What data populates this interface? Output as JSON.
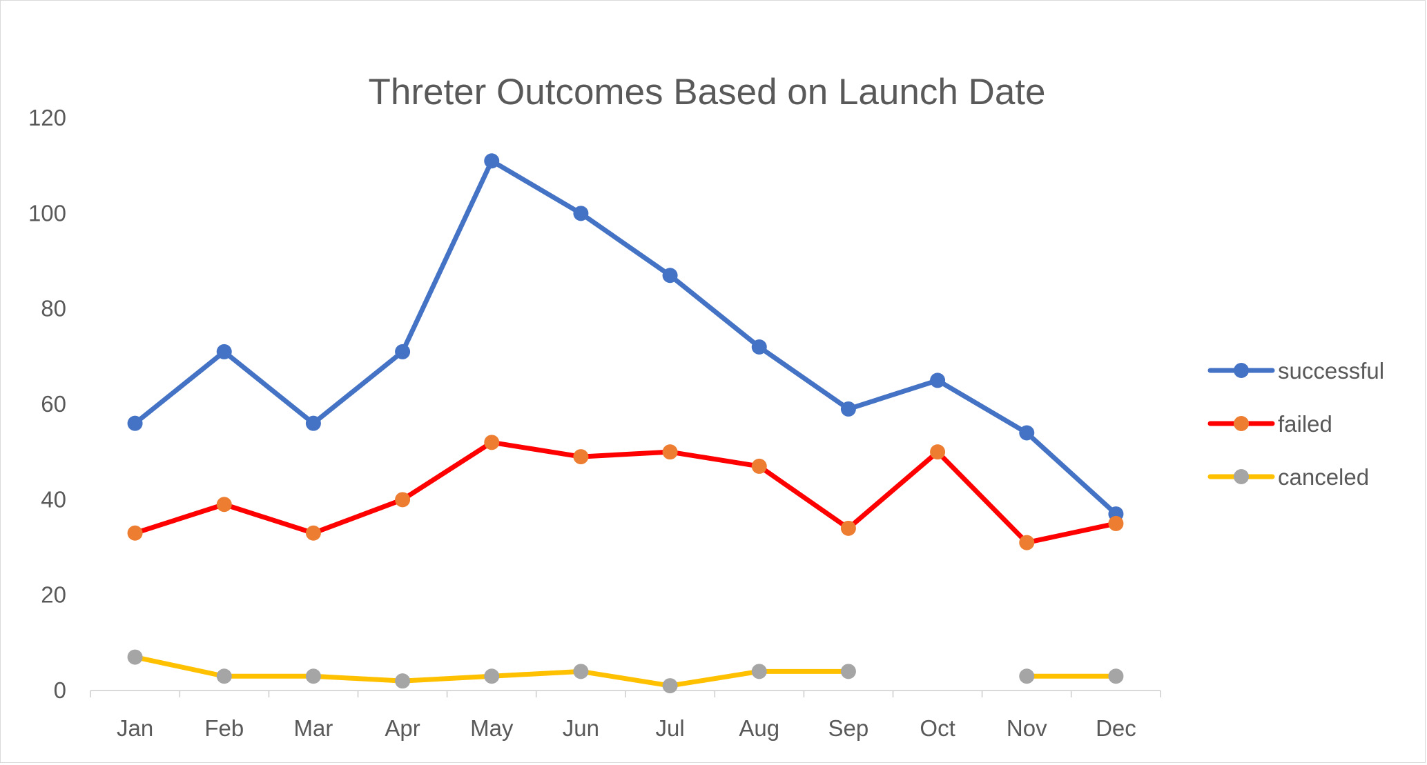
{
  "chart_data": {
    "type": "line",
    "title": "Threter Outcomes Based on Launch Date",
    "xlabel": "",
    "ylabel": "",
    "categories": [
      "Jan",
      "Feb",
      "Mar",
      "Apr",
      "May",
      "Jun",
      "Jul",
      "Aug",
      "Sep",
      "Oct",
      "Nov",
      "Dec"
    ],
    "ylim": [
      0,
      120
    ],
    "yticks": [
      "0",
      "20",
      "40",
      "60",
      "80",
      "100",
      "120"
    ],
    "grid": false,
    "legend": "right",
    "series": [
      {
        "name": "successful",
        "line_color": "#4472C4",
        "marker_color": "#4472C4",
        "values": [
          56,
          71,
          56,
          71,
          111,
          100,
          87,
          72,
          59,
          65,
          54,
          37
        ]
      },
      {
        "name": "failed",
        "line_color": "#FF0000",
        "marker_color": "#ED7D31",
        "values": [
          33,
          39,
          33,
          40,
          52,
          49,
          50,
          47,
          34,
          50,
          31,
          35
        ]
      },
      {
        "name": "canceled",
        "line_color": "#FFC000",
        "marker_color": "#A5A5A5",
        "values": [
          7,
          3,
          3,
          2,
          3,
          4,
          1,
          4,
          4,
          null,
          3,
          3
        ]
      }
    ]
  }
}
